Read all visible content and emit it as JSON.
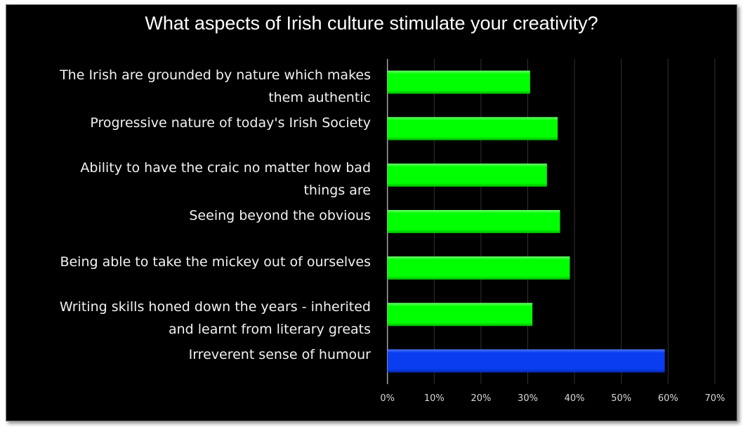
{
  "chart_data": {
    "type": "bar",
    "orientation": "horizontal",
    "title": "What aspects of Irish culture stimulate your creativity?",
    "categories": [
      "The Irish are grounded by nature which makes them authentic",
      "Progressive nature of today's Irish Society",
      "Ability to have the craic no matter how bad things are",
      "Seeing beyond the obvious",
      "Being able to take the mickey out of ourselves",
      "Writing skills honed down the years - inherited and learnt from literary greats",
      "Irreverent sense of humour"
    ],
    "category_lines": [
      [
        "The Irish are grounded by nature which makes",
        "them authentic"
      ],
      [
        "Progressive nature of today's Irish Society"
      ],
      [
        "Ability to have the craic no matter how bad",
        "things are"
      ],
      [
        "Seeing beyond the obvious"
      ],
      [
        "Being able to take the mickey out of ourselves"
      ],
      [
        "Writing skills honed down the years - inherited",
        "and learnt from literary greats"
      ],
      [
        "Irreverent sense of humour"
      ]
    ],
    "values": [
      30.5,
      36.4,
      34.1,
      36.9,
      39.0,
      31.0,
      59.3
    ],
    "bar_colors": [
      "#00ff00",
      "#00ff00",
      "#00ff00",
      "#00ff00",
      "#00ff00",
      "#00ff00",
      "#0a3cf0"
    ],
    "xlim": [
      0,
      70
    ],
    "x_ticks": [
      "0%",
      "10%",
      "20%",
      "30%",
      "40%",
      "50%",
      "60%",
      "70%"
    ],
    "xlabel": "",
    "ylabel": "",
    "grid": true,
    "background": "#000000"
  }
}
